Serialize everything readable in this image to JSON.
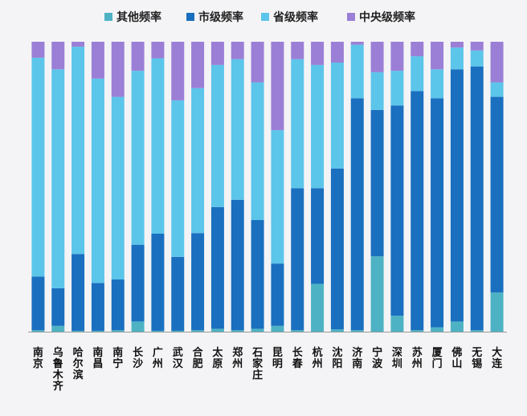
{
  "chart_data": {
    "type": "bar",
    "stacked": true,
    "normalized": true,
    "legend_position": "top",
    "grid": false,
    "ylim": [
      0,
      100
    ],
    "categories": [
      "南京",
      "乌鲁木齐",
      "哈尔滨",
      "南昌",
      "南宁",
      "长沙",
      "广州",
      "武汉",
      "合肥",
      "太原",
      "郑州",
      "石家庄",
      "昆明",
      "长春",
      "杭州",
      "沈阳",
      "济南",
      "宁波",
      "深圳",
      "苏州",
      "厦门",
      "佛山",
      "无锡",
      "大连"
    ],
    "series": [
      {
        "name": "其他频率",
        "color": "#4db3c4",
        "values": [
          0.5,
          2,
          0.3,
          0.3,
          0.5,
          3.5,
          0.3,
          0.3,
          0.5,
          1,
          0.5,
          1,
          2,
          0.5,
          16.5,
          0.8,
          0.5,
          26,
          5.5,
          0.5,
          1.5,
          3.5,
          0.5,
          13.5
        ]
      },
      {
        "name": "市级频率",
        "color": "#1a6fbf",
        "values": [
          18.5,
          13,
          26.5,
          16.5,
          17.5,
          26.5,
          33.5,
          25.5,
          33.5,
          42,
          45,
          37.5,
          21.5,
          49,
          33,
          55.5,
          80,
          50.5,
          72.5,
          82.5,
          79,
          87,
          91,
          67.5
        ]
      },
      {
        "name": "省级频率",
        "color": "#5cc5ea",
        "values": [
          75.5,
          75.5,
          71.5,
          70.5,
          63,
          60,
          60.5,
          54,
          50,
          49,
          48.5,
          47.5,
          46,
          44.5,
          42.5,
          36.5,
          18.5,
          13,
          12,
          12,
          10,
          7.5,
          5.5,
          5
        ]
      },
      {
        "name": "中央级频率",
        "color": "#9b7fd6",
        "values": [
          5.5,
          9.5,
          1.7,
          12.7,
          19,
          10,
          5.7,
          20.2,
          16,
          8,
          6,
          14,
          30.5,
          6,
          8,
          7.2,
          1,
          10.5,
          10,
          5,
          9.5,
          2,
          3,
          14
        ]
      }
    ]
  }
}
